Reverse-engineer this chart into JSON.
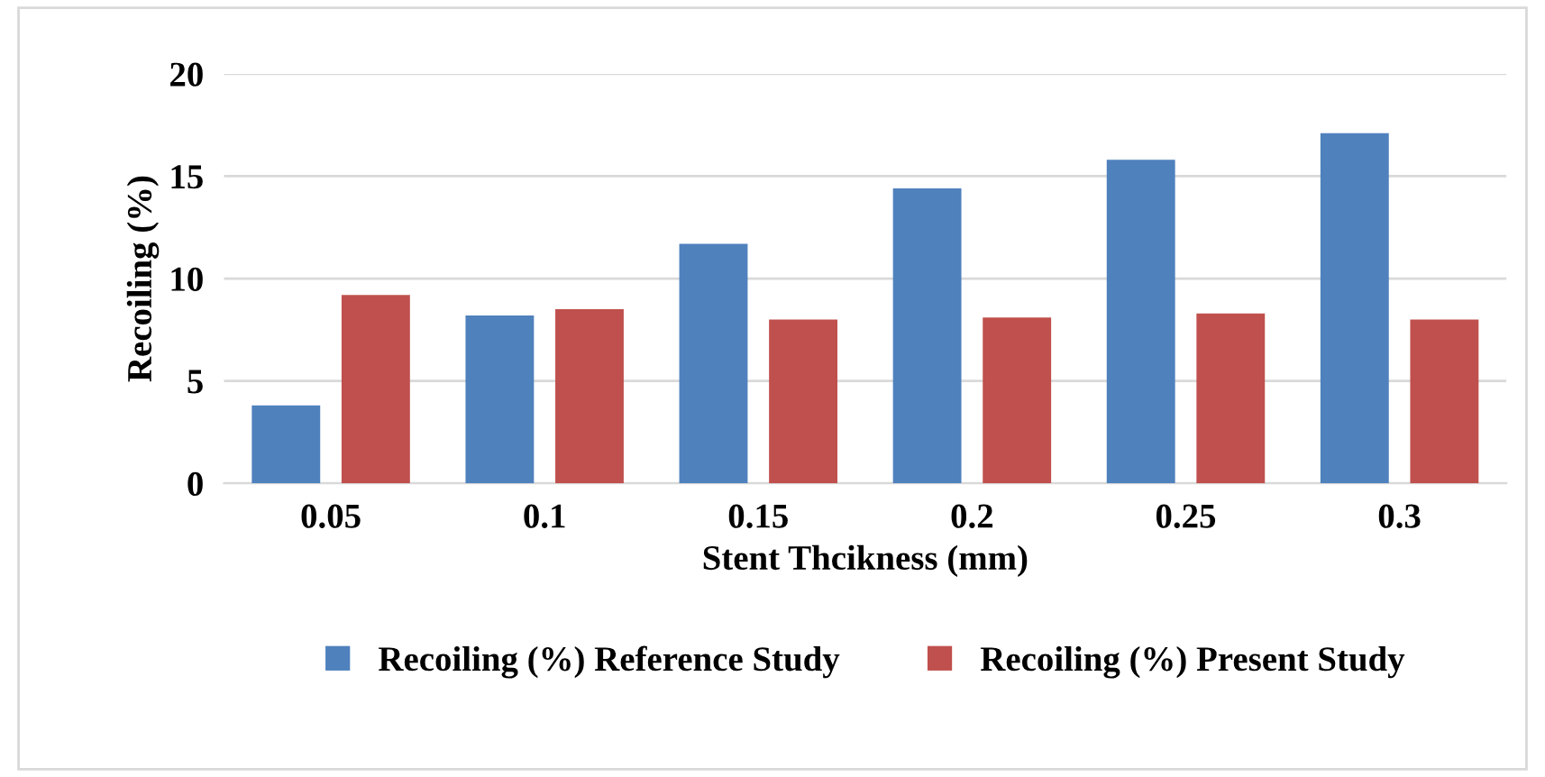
{
  "chart_data": {
    "type": "bar",
    "xlabel": "Stent Thcikness (mm)",
    "ylabel": "Recoiling (%)",
    "categories": [
      "0.05",
      "0.1",
      "0.15",
      "0.2",
      "0.25",
      "0.3"
    ],
    "series": [
      {
        "name": "Recoiling (%) Reference Study",
        "color": "#4f81bd",
        "values": [
          3.8,
          8.2,
          11.7,
          14.4,
          15.8,
          17.1
        ]
      },
      {
        "name": "Recoiling (%) Present Study",
        "color": "#c0504d",
        "values": [
          9.2,
          8.5,
          8.0,
          8.1,
          8.3,
          8.0
        ]
      }
    ],
    "ylim": [
      0,
      20
    ],
    "yticks": [
      0,
      5,
      10,
      15,
      20
    ],
    "grid": "y",
    "legend": "bottom"
  }
}
